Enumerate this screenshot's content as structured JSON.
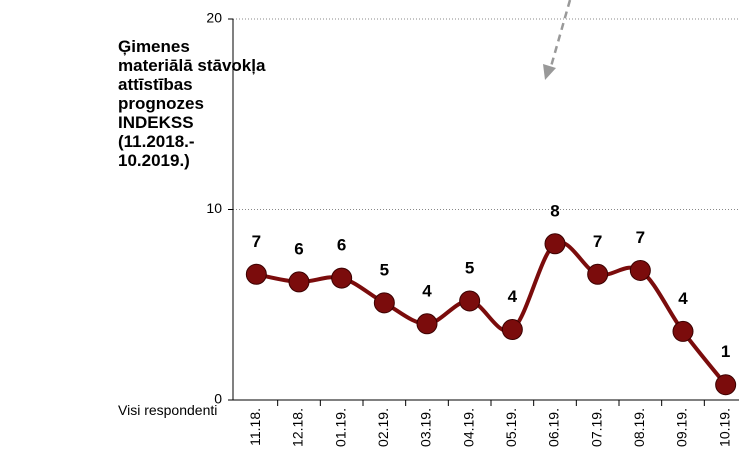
{
  "chart_data": {
    "type": "line",
    "title": "Ģimenes\nmateriālā stāvokļa\nattīstības\nprognozes\nINDEKSS\n(11.2018.-\n10.2019.)",
    "footnote": "Visi respondenti",
    "categories": [
      "11.18.",
      "12.18.",
      "01.19.",
      "02.19.",
      "03.19.",
      "04.19.",
      "05.19.",
      "06.19.",
      "07.19.",
      "08.19.",
      "09.19.",
      "10.19."
    ],
    "values": [
      6.6,
      6.2,
      6.4,
      5.1,
      4.0,
      5.2,
      3.7,
      8.2,
      6.6,
      6.8,
      3.6,
      0.8
    ],
    "value_labels": [
      "7",
      "6",
      "6",
      "5",
      "4",
      "5",
      "4",
      "8",
      "7",
      "7",
      "4",
      "1"
    ],
    "color": "#7b0c0c",
    "ylim": [
      0,
      20
    ],
    "yticks": [
      0,
      10,
      20
    ],
    "grid": true
  }
}
